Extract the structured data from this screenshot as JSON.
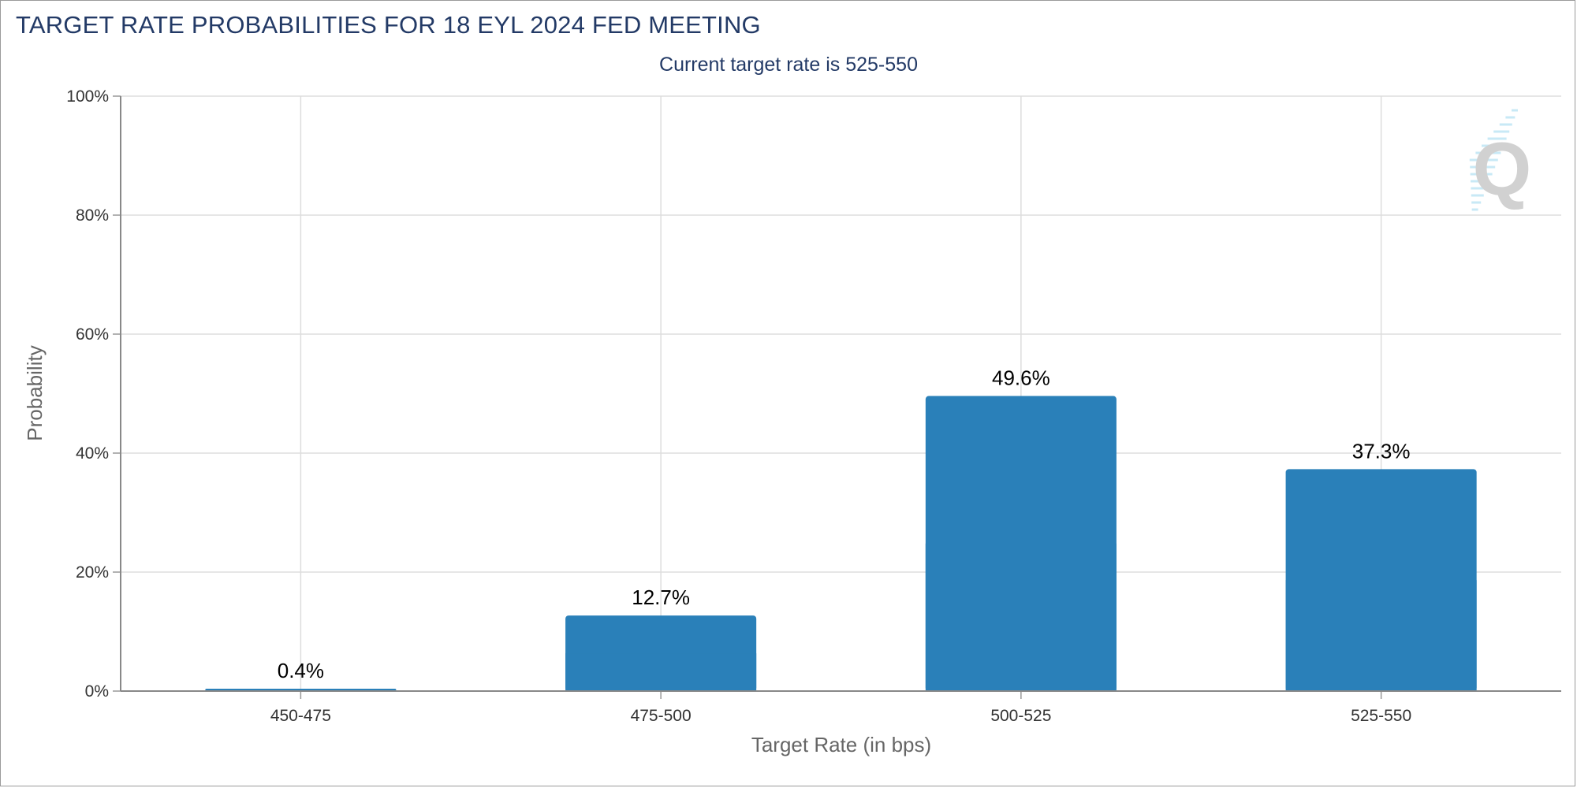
{
  "title": "TARGET RATE PROBABILITIES FOR 18 EYL 2024 FED MEETING",
  "subtitle": "Current target rate is 525-550",
  "watermark_icon": "q-logo-icon",
  "chart_data": {
    "type": "bar",
    "categories": [
      "450-475",
      "475-500",
      "500-525",
      "525-550"
    ],
    "values": [
      0.4,
      12.7,
      49.6,
      37.3
    ],
    "value_labels": [
      "0.4%",
      "12.7%",
      "49.6%",
      "37.3%"
    ],
    "xlabel": "Target Rate (in bps)",
    "ylabel": "Probability",
    "ylim": [
      0,
      100
    ],
    "yticks": [
      0,
      20,
      40,
      60,
      80,
      100
    ],
    "ytick_labels": [
      "0%",
      "20%",
      "40%",
      "60%",
      "80%",
      "100%"
    ],
    "grid": true,
    "bar_color": "#2a80b9",
    "grid_color": "#dddddd"
  }
}
